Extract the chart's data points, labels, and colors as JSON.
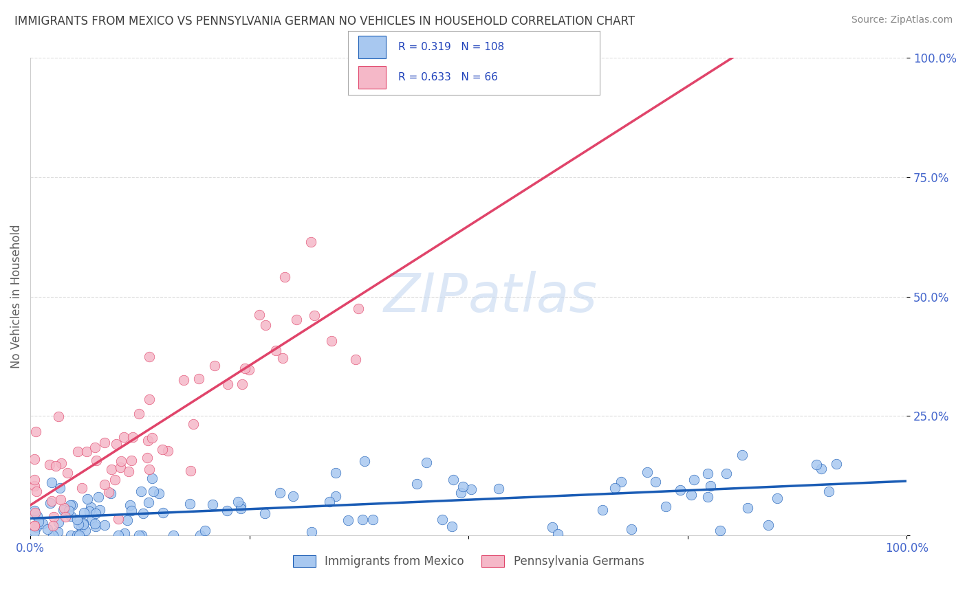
{
  "title": "IMMIGRANTS FROM MEXICO VS PENNSYLVANIA GERMAN NO VEHICLES IN HOUSEHOLD CORRELATION CHART",
  "source": "Source: ZipAtlas.com",
  "ylabel": "No Vehicles in Household",
  "watermark_zip": "ZIP",
  "watermark_atlas": "atlas",
  "blue_R": 0.319,
  "blue_N": 108,
  "pink_R": 0.633,
  "pink_N": 66,
  "blue_scatter_color": "#a8c8f0",
  "pink_scatter_color": "#f5b8c8",
  "blue_line_color": "#1a5cb5",
  "pink_line_color": "#e0446a",
  "legend_box_blue": "#a8c8f0",
  "legend_box_pink": "#f5b8c8",
  "background_color": "#ffffff",
  "grid_color": "#cccccc",
  "title_color": "#404040",
  "axis_label_color": "#606060",
  "tick_label_color": "#4466cc",
  "legend_R_N_color": "#2244bb",
  "source_color": "#888888"
}
